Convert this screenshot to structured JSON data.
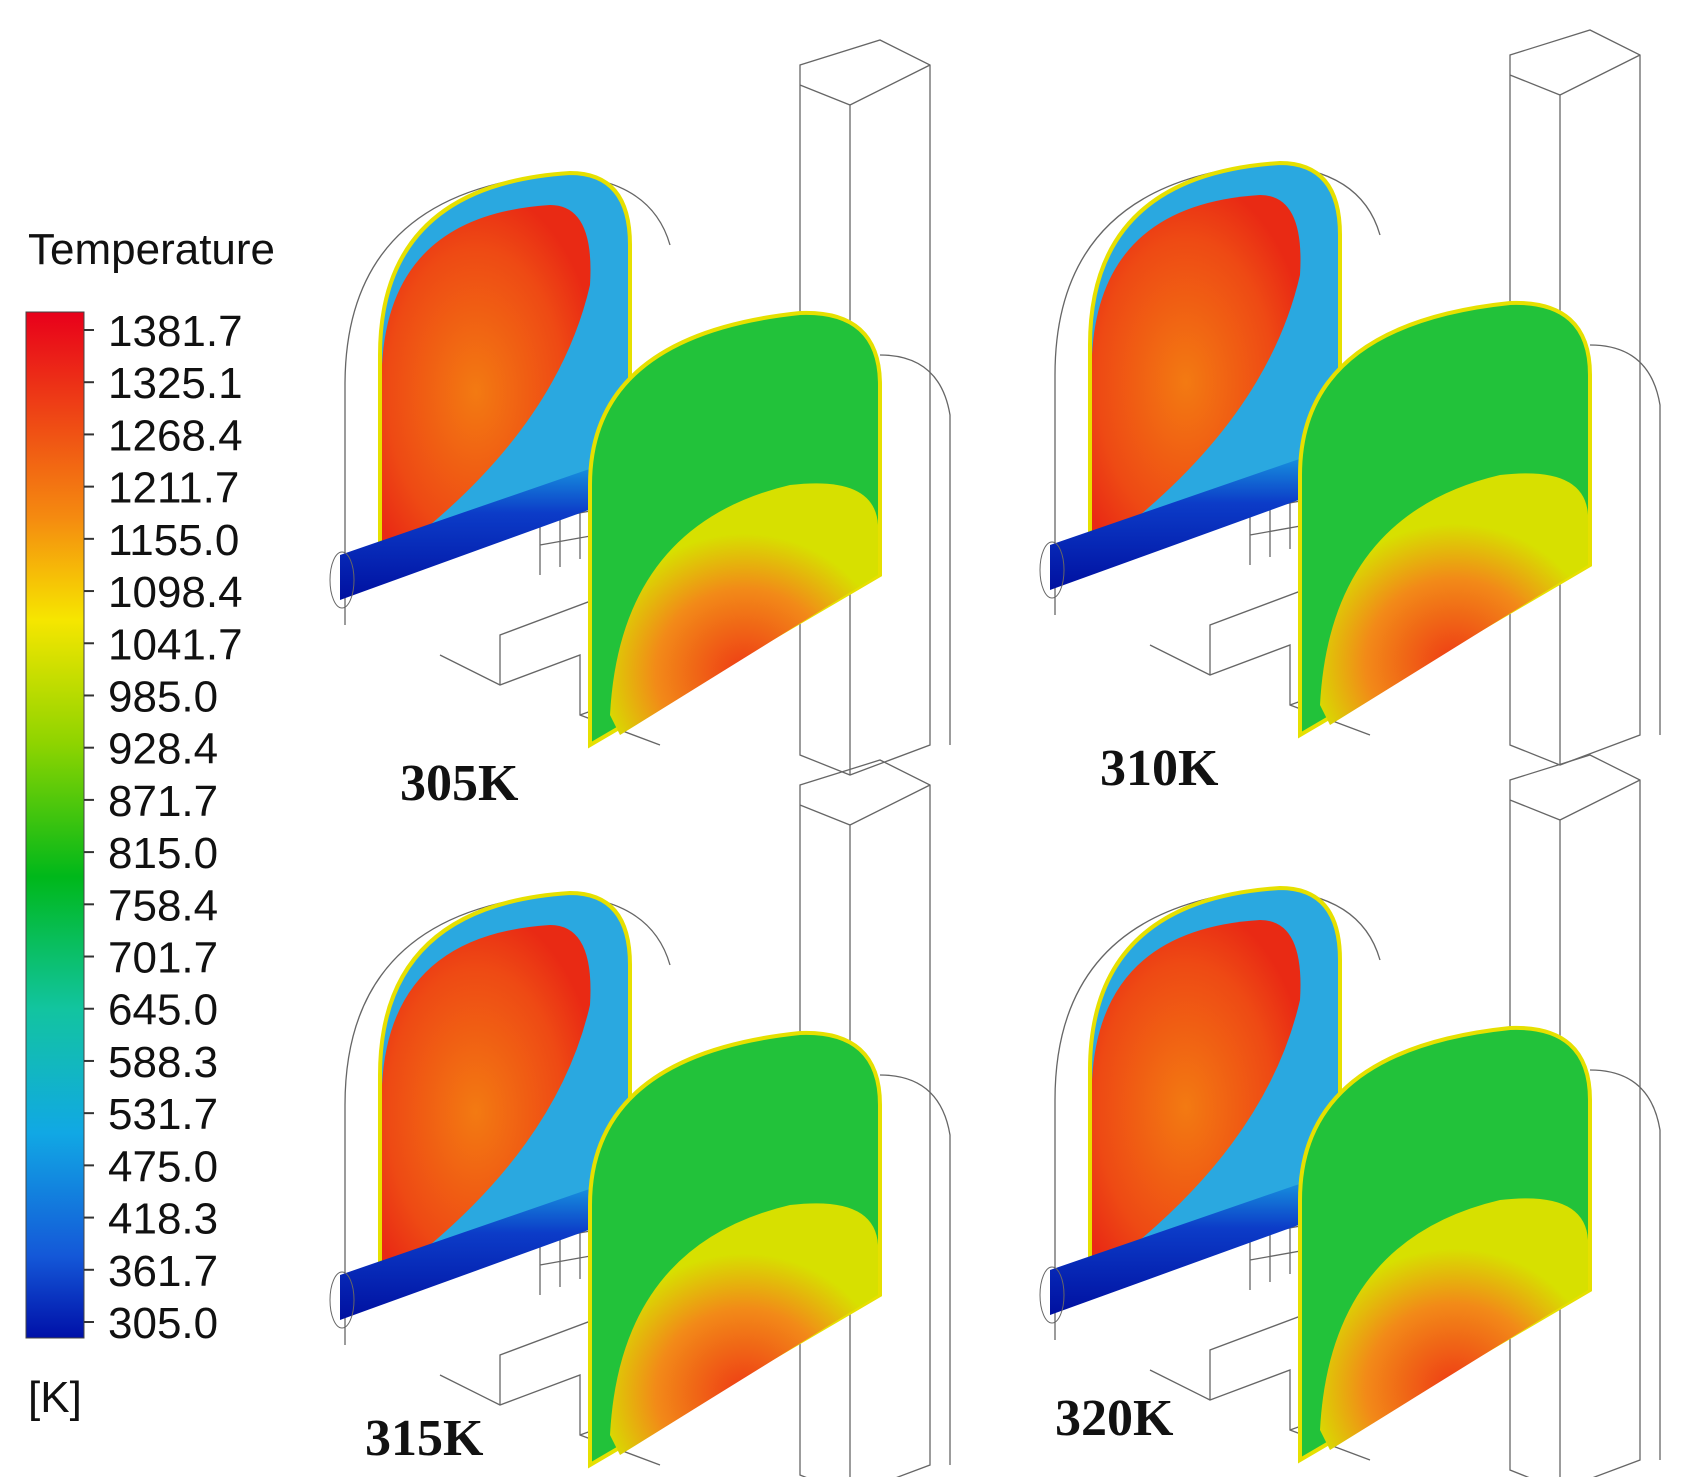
{
  "legend": {
    "title": "Temperature",
    "ticks": [
      "1381.7",
      "1325.1",
      "1268.4",
      "1211.7",
      "1155.0",
      "1098.4",
      "1041.7",
      "985.0",
      "928.4",
      "871.7",
      "815.0",
      "758.4",
      "701.7",
      "645.0",
      "588.3",
      "531.7",
      "475.0",
      "418.3",
      "361.7",
      "305.0"
    ],
    "unit": "[K]"
  },
  "panels": [
    {
      "label": "305K"
    },
    {
      "label": "310K"
    },
    {
      "label": "315K"
    },
    {
      "label": "320K"
    }
  ]
}
